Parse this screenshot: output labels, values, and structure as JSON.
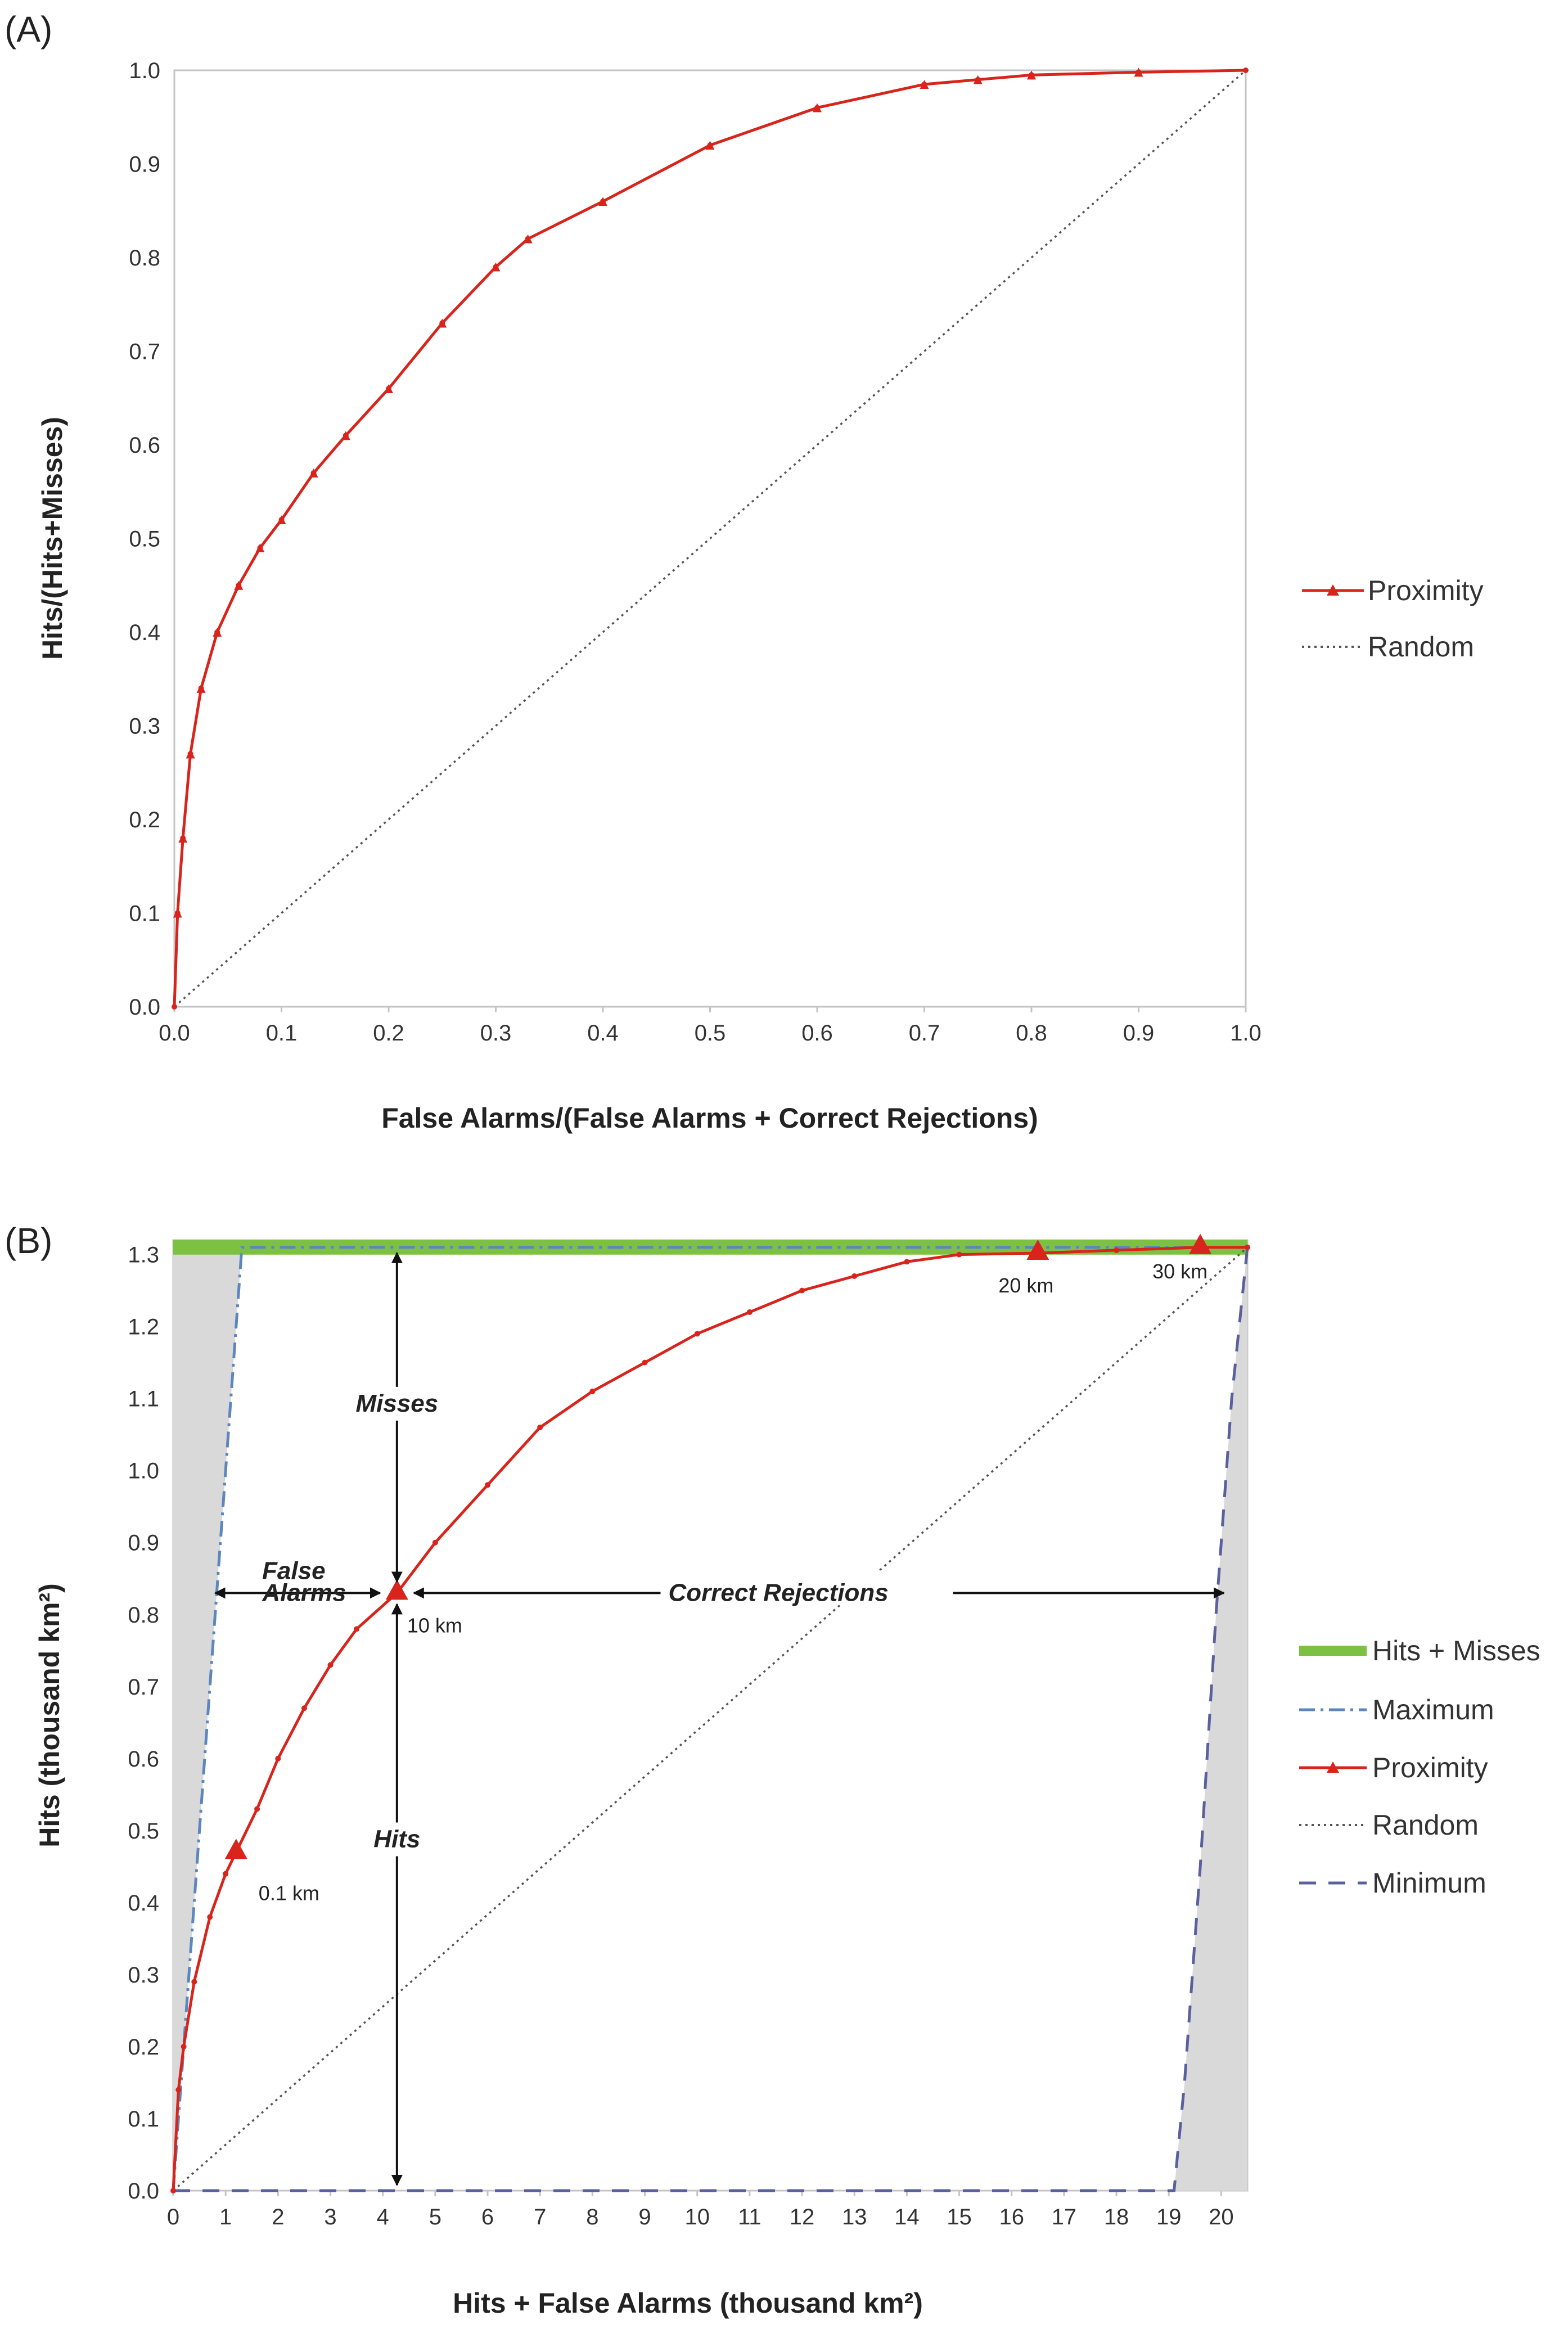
{
  "chart_data": [
    {
      "type": "line",
      "panel": "(A)",
      "xlabel": "False Alarms/(False Alarms + Correct Rejections)",
      "ylabel": "Hits/(Hits+Misses)",
      "xlim": [
        0,
        1
      ],
      "ylim": [
        0,
        1
      ],
      "xticks": [
        "0.0",
        "0.1",
        "0.2",
        "0.3",
        "0.4",
        "0.5",
        "0.6",
        "0.7",
        "0.8",
        "0.9",
        "1.0"
      ],
      "yticks": [
        "0.0",
        "0.1",
        "0.2",
        "0.3",
        "0.4",
        "0.5",
        "0.6",
        "0.7",
        "0.8",
        "0.9",
        "1.0"
      ],
      "grid": false,
      "legend_position": "right",
      "series": [
        {
          "name": "Proximity",
          "color": "#d9241c",
          "style": "solid-with-markers",
          "x": [
            0,
            0.003,
            0.008,
            0.015,
            0.025,
            0.04,
            0.06,
            0.08,
            0.1,
            0.13,
            0.16,
            0.2,
            0.25,
            0.3,
            0.33,
            0.4,
            0.5,
            0.6,
            0.7,
            0.75,
            0.8,
            0.9,
            1.0
          ],
          "y": [
            0,
            0.1,
            0.18,
            0.27,
            0.34,
            0.4,
            0.45,
            0.49,
            0.52,
            0.57,
            0.61,
            0.66,
            0.73,
            0.79,
            0.82,
            0.86,
            0.92,
            0.96,
            0.985,
            0.99,
            0.995,
            0.998,
            1.0
          ]
        },
        {
          "name": "Random",
          "color": "#555555",
          "style": "dotted",
          "x": [
            0,
            1
          ],
          "y": [
            0,
            1
          ]
        }
      ]
    },
    {
      "type": "line",
      "panel": "(B)",
      "xlabel": "Hits + False Alarms (thousand km²)",
      "ylabel": "Hits (thousand km²)",
      "xlim": [
        0,
        20.5
      ],
      "ylim": [
        0,
        1.32
      ],
      "xticks": [
        "0",
        "1",
        "2",
        "3",
        "4",
        "5",
        "6",
        "7",
        "8",
        "9",
        "10",
        "11",
        "12",
        "13",
        "14",
        "15",
        "16",
        "17",
        "18",
        "19",
        "20"
      ],
      "yticks": [
        "0.0",
        "0.1",
        "0.2",
        "0.3",
        "0.4",
        "0.5",
        "0.6",
        "0.7",
        "0.8",
        "0.9",
        "1.0",
        "1.1",
        "1.2",
        "1.3"
      ],
      "grid": false,
      "legend_position": "right",
      "series": [
        {
          "name": "Hits + Misses",
          "color": "#7dc142",
          "style": "thick-solid",
          "x": [
            0,
            20.5
          ],
          "y": [
            1.31,
            1.31
          ]
        },
        {
          "name": "Maximum",
          "color": "#5b86c0",
          "style": "dash-dot",
          "x": [
            0,
            0.3,
            0.7,
            1.31,
            20.5
          ],
          "y": [
            0,
            0.3,
            0.7,
            1.31,
            1.31
          ]
        },
        {
          "name": "Proximity",
          "color": "#d9241c",
          "style": "solid-with-markers",
          "x": [
            0,
            0.1,
            0.2,
            0.4,
            0.7,
            1.0,
            1.2,
            1.6,
            2.0,
            2.5,
            3.0,
            3.5,
            4.27,
            5.0,
            6.0,
            7.0,
            8.0,
            9.0,
            10.0,
            11.0,
            12.0,
            13.0,
            14.0,
            15.0,
            16.5,
            18.0,
            19.6,
            20.5
          ],
          "y": [
            0,
            0.14,
            0.2,
            0.29,
            0.38,
            0.44,
            0.47,
            0.53,
            0.6,
            0.67,
            0.73,
            0.78,
            0.83,
            0.9,
            0.98,
            1.06,
            1.11,
            1.15,
            1.19,
            1.22,
            1.25,
            1.27,
            1.29,
            1.3,
            1.302,
            1.306,
            1.31,
            1.31
          ]
        },
        {
          "name": "Random",
          "color": "#555555",
          "style": "dotted",
          "x": [
            0,
            20.5
          ],
          "y": [
            0,
            1.31
          ]
        },
        {
          "name": "Minimum",
          "color": "#5a5f9e",
          "style": "dashed",
          "x": [
            0,
            19.1,
            19.3,
            19.6,
            19.9,
            20.2,
            20.5
          ],
          "y": [
            0,
            0,
            0.15,
            0.45,
            0.8,
            1.1,
            1.31
          ]
        }
      ],
      "point_labels": [
        {
          "text": "0.1 km",
          "x": 1.2,
          "y": 0.47
        },
        {
          "text": "10 km",
          "x": 4.27,
          "y": 0.83
        },
        {
          "text": "20 km",
          "x": 16.5,
          "y": 1.302
        },
        {
          "text": "30 km",
          "x": 19.6,
          "y": 1.31
        }
      ],
      "annotations": {
        "misses": "Misses",
        "false_alarms_1": "False",
        "false_alarms_2": "Alarms",
        "correct_rejections": "Correct Rejections",
        "hits": "Hits"
      }
    }
  ]
}
